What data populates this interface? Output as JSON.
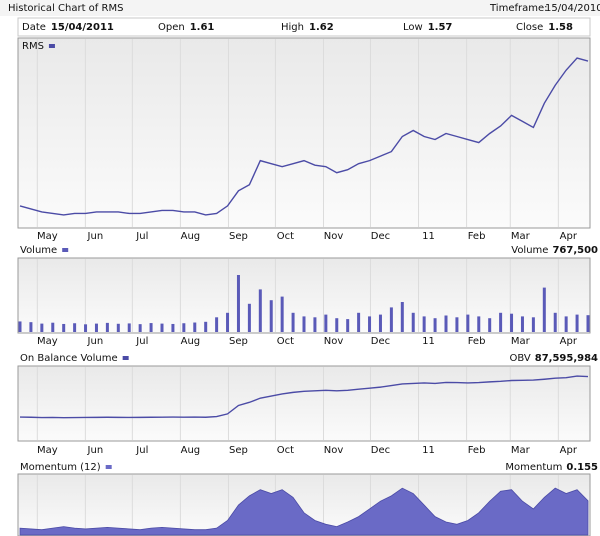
{
  "header": {
    "title": "Historical Chart of RMS",
    "timeframe_label": "Timeframe:",
    "timeframe": "15/04/2010",
    "fields": [
      {
        "label": "Date",
        "value": "15/04/2011"
      },
      {
        "label": "Open",
        "value": 1.61
      },
      {
        "label": "High",
        "value": 1.62
      },
      {
        "label": "Low",
        "value": 1.57
      },
      {
        "label": "Close",
        "value": 1.58
      }
    ]
  },
  "chart_data": [
    {
      "type": "line",
      "legend": "RMS",
      "color": "#4b4ba6",
      "xlim": [
        0,
        52
      ],
      "xticks": [
        {
          "value": 2.5,
          "label": "May"
        },
        {
          "value": 6.9,
          "label": "Jun"
        },
        {
          "value": 11.2,
          "label": "Jul"
        },
        {
          "value": 15.6,
          "label": "Aug"
        },
        {
          "value": 20,
          "label": "Sep"
        },
        {
          "value": 24.3,
          "label": "Oct"
        },
        {
          "value": 28.7,
          "label": "Nov"
        },
        {
          "value": 33,
          "label": "Dec"
        },
        {
          "value": 37.4,
          "label": "11"
        },
        {
          "value": 41.8,
          "label": "Feb"
        },
        {
          "value": 45.8,
          "label": "Mar"
        },
        {
          "value": 50.2,
          "label": "Apr"
        }
      ],
      "ylim": [
        0.5,
        1.68
      ],
      "values": [
        0.62,
        0.6,
        0.58,
        0.57,
        0.56,
        0.57,
        0.57,
        0.58,
        0.58,
        0.58,
        0.57,
        0.57,
        0.58,
        0.59,
        0.59,
        0.58,
        0.58,
        0.56,
        0.57,
        0.62,
        0.72,
        0.76,
        0.92,
        0.9,
        0.88,
        0.9,
        0.92,
        0.89,
        0.88,
        0.84,
        0.86,
        0.9,
        0.92,
        0.95,
        0.98,
        1.08,
        1.12,
        1.08,
        1.06,
        1.1,
        1.08,
        1.06,
        1.04,
        1.1,
        1.15,
        1.22,
        1.18,
        1.14,
        1.3,
        1.42,
        1.52,
        1.6,
        1.58
      ]
    },
    {
      "type": "bar",
      "legend": "Volume",
      "readout_name": "Volume",
      "readout": {
        "value": 767500,
        "label": "767,500"
      },
      "color": "#5a5ab8",
      "xlim": [
        0,
        52
      ],
      "ylim": [
        0,
        3500000
      ],
      "values": [
        420000,
        380000,
        300000,
        350000,
        280000,
        320000,
        260000,
        300000,
        340000,
        290000,
        310000,
        270000,
        330000,
        300000,
        280000,
        320000,
        360000,
        400000,
        650000,
        900000,
        3000000,
        1400000,
        2200000,
        1600000,
        1800000,
        900000,
        700000,
        650000,
        800000,
        600000,
        550000,
        900000,
        700000,
        800000,
        1200000,
        1500000,
        900000,
        700000,
        600000,
        750000,
        650000,
        800000,
        700000,
        600000,
        900000,
        850000,
        700000,
        650000,
        2300000,
        900000,
        700000,
        800000,
        767500
      ]
    },
    {
      "type": "line",
      "legend": "On Balance Volume",
      "readout_name": "OBV",
      "readout": {
        "value": 87595984,
        "label": "87,595,984"
      },
      "color": "#4b4ba6",
      "xlim": [
        0,
        52
      ],
      "ylim": [
        30000000,
        90000000
      ],
      "values": [
        49000000,
        48800000,
        48500000,
        48600000,
        48400000,
        48500000,
        48600000,
        48700000,
        48800000,
        48700000,
        48600000,
        48700000,
        48800000,
        48900000,
        49000000,
        48900000,
        49000000,
        48800000,
        49500000,
        52000000,
        60000000,
        63000000,
        67000000,
        69000000,
        71000000,
        72500000,
        73500000,
        74000000,
        74500000,
        74000000,
        74500000,
        75500000,
        76500000,
        77500000,
        79000000,
        80500000,
        81000000,
        81500000,
        81000000,
        82000000,
        81800000,
        81500000,
        81800000,
        82500000,
        83000000,
        83800000,
        84000000,
        84200000,
        85000000,
        86000000,
        86500000,
        88000000,
        87595984
      ]
    },
    {
      "type": "area",
      "legend": "Momentum (12)",
      "readout_name": "Momentum",
      "readout": {
        "value": 0.155,
        "label": "0.155"
      },
      "color": "#6a6ac6",
      "xlim": [
        0,
        52
      ],
      "ylim": [
        -0.25,
        0.4
      ],
      "values": [
        -0.2,
        -0.21,
        -0.22,
        -0.2,
        -0.18,
        -0.2,
        -0.21,
        -0.2,
        -0.19,
        -0.2,
        -0.21,
        -0.22,
        -0.2,
        -0.19,
        -0.2,
        -0.21,
        -0.22,
        -0.22,
        -0.2,
        -0.1,
        0.1,
        0.22,
        0.3,
        0.25,
        0.3,
        0.2,
        0.0,
        -0.1,
        -0.15,
        -0.18,
        -0.12,
        -0.05,
        0.05,
        0.15,
        0.22,
        0.32,
        0.25,
        0.1,
        -0.05,
        -0.12,
        -0.15,
        -0.1,
        0.0,
        0.15,
        0.28,
        0.3,
        0.15,
        0.05,
        0.2,
        0.32,
        0.25,
        0.3,
        0.155
      ]
    }
  ]
}
